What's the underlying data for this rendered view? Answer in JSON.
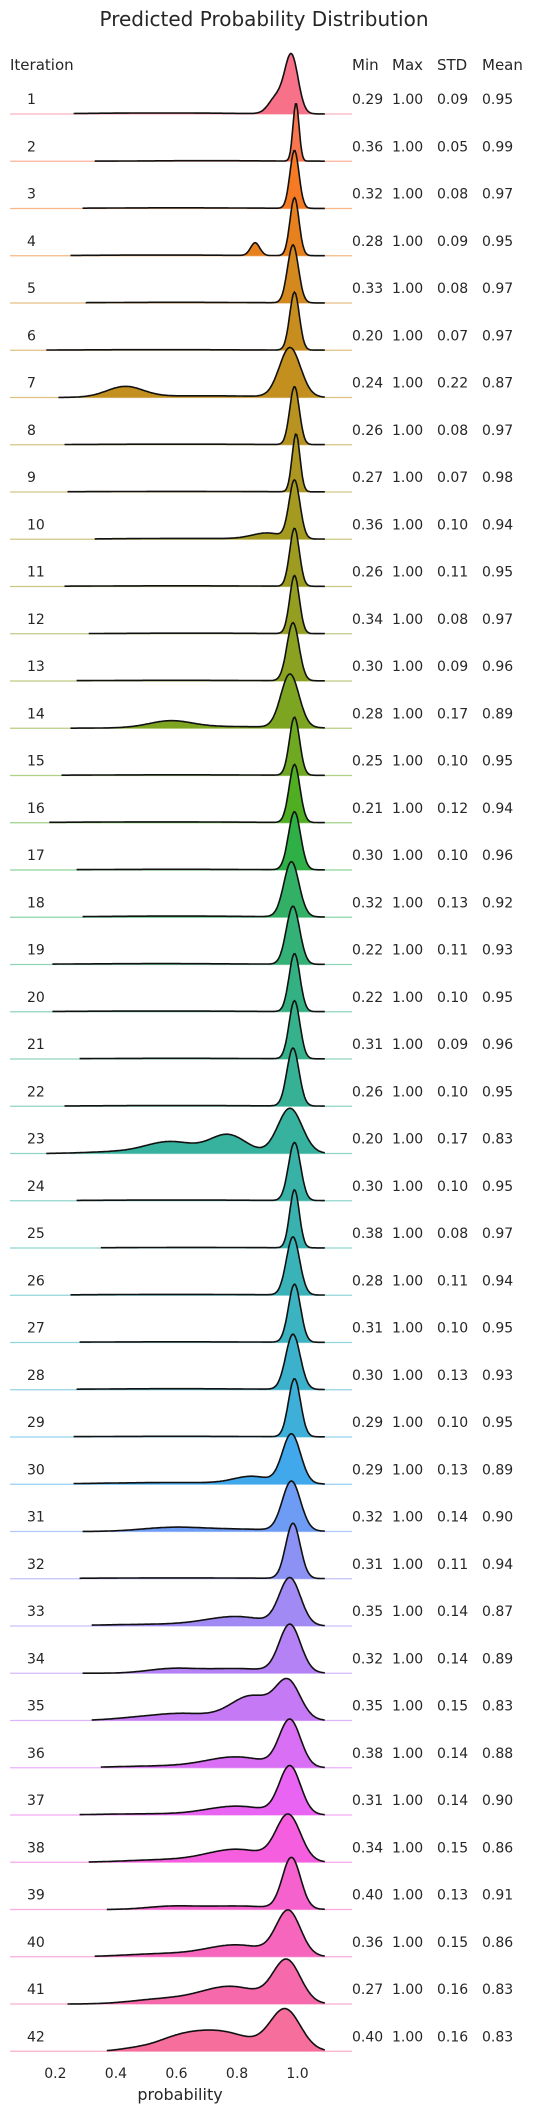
{
  "chart_data": {
    "type": "ridgeline",
    "title": "Predicted Probability Distribution",
    "xlabel": "probability",
    "xlim": [
      0.05,
      1.18
    ],
    "xticks": [
      0.2,
      0.4,
      0.6,
      0.8,
      1.0
    ],
    "xtick_labels": [
      "0.2",
      "0.4",
      "0.6",
      "0.8",
      "1.0"
    ],
    "row_header": "Iteration",
    "stat_headers": [
      "Min",
      "Max",
      "STD",
      "Mean"
    ],
    "rows": [
      {
        "label": "1",
        "stats": [
          "0.29",
          "1.00",
          "0.09",
          "0.95"
        ],
        "color": "#f77189",
        "peaks": [
          [
            0.98,
            0.022,
            1.0
          ],
          [
            0.93,
            0.025,
            0.28
          ],
          [
            0.55,
            0.25,
            0.018
          ]
        ]
      },
      {
        "label": "2",
        "stats": [
          "0.36",
          "1.00",
          "0.05",
          "0.99"
        ],
        "color": "#f7754f",
        "peaks": [
          [
            0.995,
            0.01,
            1.0
          ],
          [
            0.7,
            0.2,
            0.01
          ]
        ]
      },
      {
        "label": "3",
        "stats": [
          "0.32",
          "1.00",
          "0.08",
          "0.97"
        ],
        "color": "#f57a23",
        "peaks": [
          [
            0.99,
            0.015,
            1.0
          ],
          [
            0.6,
            0.25,
            0.012
          ]
        ]
      },
      {
        "label": "4",
        "stats": [
          "0.28",
          "1.00",
          "0.09",
          "0.95"
        ],
        "color": "#e7811e",
        "peaks": [
          [
            0.99,
            0.015,
            1.0
          ],
          [
            0.86,
            0.015,
            0.22
          ],
          [
            0.55,
            0.25,
            0.012
          ]
        ]
      },
      {
        "label": "5",
        "stats": [
          "0.33",
          "1.00",
          "0.08",
          "0.97"
        ],
        "color": "#d4891e",
        "peaks": [
          [
            0.985,
            0.018,
            1.0
          ],
          [
            0.6,
            0.25,
            0.012
          ]
        ]
      },
      {
        "label": "6",
        "stats": [
          "0.20",
          "1.00",
          "0.07",
          "0.97"
        ],
        "color": "#c78d1e",
        "peaks": [
          [
            0.99,
            0.016,
            1.0
          ],
          [
            0.55,
            0.3,
            0.01
          ]
        ]
      },
      {
        "label": "7",
        "stats": [
          "0.24",
          "1.00",
          "0.22",
          "0.87"
        ],
        "color": "#c38f1f",
        "peaks": [
          [
            0.975,
            0.035,
            0.85
          ],
          [
            0.43,
            0.06,
            0.18
          ],
          [
            0.7,
            0.2,
            0.03
          ]
        ]
      },
      {
        "label": "8",
        "stats": [
          "0.26",
          "1.00",
          "0.08",
          "0.97"
        ],
        "color": "#b8931f",
        "peaks": [
          [
            0.99,
            0.016,
            1.0
          ],
          [
            0.6,
            0.3,
            0.01
          ]
        ]
      },
      {
        "label": "9",
        "stats": [
          "0.27",
          "1.00",
          "0.07",
          "0.98"
        ],
        "color": "#ae9720",
        "peaks": [
          [
            0.995,
            0.013,
            1.0
          ],
          [
            0.6,
            0.3,
            0.01
          ]
        ]
      },
      {
        "label": "10",
        "stats": [
          "0.36",
          "1.00",
          "0.10",
          "0.94"
        ],
        "color": "#a59a20",
        "peaks": [
          [
            0.99,
            0.018,
            1.0
          ],
          [
            0.9,
            0.05,
            0.1
          ],
          [
            0.65,
            0.25,
            0.015
          ]
        ]
      },
      {
        "label": "11",
        "stats": [
          "0.26",
          "1.00",
          "0.11",
          "0.95"
        ],
        "color": "#9d9c21",
        "peaks": [
          [
            0.99,
            0.016,
            1.0
          ],
          [
            0.6,
            0.3,
            0.012
          ]
        ]
      },
      {
        "label": "12",
        "stats": [
          "0.34",
          "1.00",
          "0.08",
          "0.97"
        ],
        "color": "#949e21",
        "peaks": [
          [
            0.99,
            0.016,
            1.0
          ],
          [
            0.65,
            0.25,
            0.01
          ]
        ]
      },
      {
        "label": "13",
        "stats": [
          "0.30",
          "1.00",
          "0.09",
          "0.96"
        ],
        "color": "#8ba121",
        "peaks": [
          [
            0.985,
            0.02,
            1.0
          ],
          [
            0.6,
            0.3,
            0.012
          ]
        ]
      },
      {
        "label": "14",
        "stats": [
          "0.28",
          "1.00",
          "0.17",
          "0.89"
        ],
        "color": "#7ea521",
        "peaks": [
          [
            0.975,
            0.03,
            0.92
          ],
          [
            0.58,
            0.07,
            0.11
          ],
          [
            0.75,
            0.2,
            0.03
          ]
        ]
      },
      {
        "label": "15",
        "stats": [
          "0.25",
          "1.00",
          "0.10",
          "0.95"
        ],
        "color": "#6ea921",
        "peaks": [
          [
            0.99,
            0.017,
            1.0
          ],
          [
            0.6,
            0.3,
            0.012
          ]
        ]
      },
      {
        "label": "16",
        "stats": [
          "0.21",
          "1.00",
          "0.12",
          "0.94"
        ],
        "color": "#4fae21",
        "peaks": [
          [
            0.99,
            0.018,
            1.0
          ],
          [
            0.55,
            0.3,
            0.015
          ]
        ]
      },
      {
        "label": "17",
        "stats": [
          "0.30",
          "1.00",
          "0.10",
          "0.96"
        ],
        "color": "#2fb046",
        "peaks": [
          [
            0.99,
            0.02,
            1.0
          ],
          [
            0.6,
            0.3,
            0.012
          ]
        ]
      },
      {
        "label": "18",
        "stats": [
          "0.32",
          "1.00",
          "0.13",
          "0.92"
        ],
        "color": "#32b166",
        "peaks": [
          [
            0.98,
            0.025,
            0.95
          ],
          [
            0.6,
            0.3,
            0.02
          ]
        ]
      },
      {
        "label": "19",
        "stats": [
          "0.22",
          "1.00",
          "0.11",
          "0.93"
        ],
        "color": "#33b176",
        "peaks": [
          [
            0.985,
            0.022,
            1.0
          ],
          [
            0.55,
            0.3,
            0.015
          ]
        ]
      },
      {
        "label": "20",
        "stats": [
          "0.22",
          "1.00",
          "0.10",
          "0.95"
        ],
        "color": "#34b182",
        "peaks": [
          [
            0.99,
            0.018,
            1.0
          ],
          [
            0.55,
            0.3,
            0.012
          ]
        ]
      },
      {
        "label": "21",
        "stats": [
          "0.31",
          "1.00",
          "0.09",
          "0.96"
        ],
        "color": "#35b18c",
        "peaks": [
          [
            0.99,
            0.018,
            1.0
          ],
          [
            0.6,
            0.3,
            0.012
          ]
        ]
      },
      {
        "label": "22",
        "stats": [
          "0.26",
          "1.00",
          "0.10",
          "0.95"
        ],
        "color": "#36b196",
        "peaks": [
          [
            0.985,
            0.02,
            1.0
          ],
          [
            0.6,
            0.3,
            0.012
          ]
        ]
      },
      {
        "label": "23",
        "stats": [
          "0.20",
          "1.00",
          "0.17",
          "0.83"
        ],
        "color": "#37b29e",
        "peaks": [
          [
            0.975,
            0.04,
            0.78
          ],
          [
            0.77,
            0.06,
            0.32
          ],
          [
            0.58,
            0.08,
            0.2
          ],
          [
            0.4,
            0.1,
            0.03
          ]
        ]
      },
      {
        "label": "24",
        "stats": [
          "0.30",
          "1.00",
          "0.10",
          "0.95"
        ],
        "color": "#38b2a7",
        "peaks": [
          [
            0.99,
            0.02,
            1.0
          ],
          [
            0.6,
            0.3,
            0.012
          ]
        ]
      },
      {
        "label": "25",
        "stats": [
          "0.38",
          "1.00",
          "0.08",
          "0.97"
        ],
        "color": "#39b2af",
        "peaks": [
          [
            0.99,
            0.016,
            1.0
          ],
          [
            0.65,
            0.25,
            0.01
          ]
        ]
      },
      {
        "label": "26",
        "stats": [
          "0.28",
          "1.00",
          "0.11",
          "0.94"
        ],
        "color": "#3ab3b8",
        "peaks": [
          [
            0.985,
            0.022,
            1.0
          ],
          [
            0.6,
            0.3,
            0.015
          ]
        ]
      },
      {
        "label": "27",
        "stats": [
          "0.31",
          "1.00",
          "0.10",
          "0.95"
        ],
        "color": "#3bb3c1",
        "peaks": [
          [
            0.99,
            0.02,
            1.0
          ],
          [
            0.6,
            0.3,
            0.012
          ]
        ]
      },
      {
        "label": "28",
        "stats": [
          "0.30",
          "1.00",
          "0.13",
          "0.93"
        ],
        "color": "#3cb1cc",
        "peaks": [
          [
            0.985,
            0.024,
            0.95
          ],
          [
            0.6,
            0.3,
            0.018
          ]
        ]
      },
      {
        "label": "29",
        "stats": [
          "0.29",
          "1.00",
          "0.10",
          "0.95"
        ],
        "color": "#3eafd9",
        "peaks": [
          [
            0.99,
            0.02,
            1.0
          ],
          [
            0.6,
            0.3,
            0.012
          ]
        ]
      },
      {
        "label": "30",
        "stats": [
          "0.29",
          "1.00",
          "0.13",
          "0.89"
        ],
        "color": "#41a8ec",
        "peaks": [
          [
            0.98,
            0.03,
            0.85
          ],
          [
            0.85,
            0.06,
            0.12
          ],
          [
            0.6,
            0.25,
            0.03
          ]
        ]
      },
      {
        "label": "31",
        "stats": [
          "0.32",
          "1.00",
          "0.14",
          "0.90"
        ],
        "color": "#6e9bf4",
        "peaks": [
          [
            0.98,
            0.03,
            0.85
          ],
          [
            0.58,
            0.1,
            0.06
          ],
          [
            0.8,
            0.15,
            0.04
          ]
        ]
      },
      {
        "label": "32",
        "stats": [
          "0.31",
          "1.00",
          "0.11",
          "0.94"
        ],
        "color": "#8c92f4",
        "peaks": [
          [
            0.985,
            0.024,
            0.95
          ],
          [
            0.6,
            0.3,
            0.015
          ]
        ]
      },
      {
        "label": "33",
        "stats": [
          "0.35",
          "1.00",
          "0.14",
          "0.87"
        ],
        "color": "#a28af4",
        "peaks": [
          [
            0.975,
            0.035,
            0.8
          ],
          [
            0.8,
            0.1,
            0.15
          ],
          [
            0.55,
            0.2,
            0.03
          ]
        ]
      },
      {
        "label": "34",
        "stats": [
          "0.32",
          "1.00",
          "0.14",
          "0.89"
        ],
        "color": "#b482f4",
        "peaks": [
          [
            0.975,
            0.035,
            0.82
          ],
          [
            0.58,
            0.08,
            0.07
          ],
          [
            0.8,
            0.12,
            0.08
          ]
        ]
      },
      {
        "label": "35",
        "stats": [
          "0.35",
          "1.00",
          "0.15",
          "0.83"
        ],
        "color": "#c579f4",
        "peaks": [
          [
            0.97,
            0.04,
            0.62
          ],
          [
            0.85,
            0.07,
            0.42
          ],
          [
            0.62,
            0.1,
            0.12
          ],
          [
            0.45,
            0.08,
            0.03
          ]
        ]
      },
      {
        "label": "36",
        "stats": [
          "0.38",
          "1.00",
          "0.14",
          "0.88"
        ],
        "color": "#d96ff4",
        "peaks": [
          [
            0.975,
            0.035,
            0.8
          ],
          [
            0.8,
            0.1,
            0.18
          ],
          [
            0.55,
            0.15,
            0.03
          ]
        ]
      },
      {
        "label": "37",
        "stats": [
          "0.31",
          "1.00",
          "0.14",
          "0.90"
        ],
        "color": "#ea64f3",
        "peaks": [
          [
            0.975,
            0.035,
            0.82
          ],
          [
            0.8,
            0.1,
            0.15
          ],
          [
            0.5,
            0.15,
            0.02
          ]
        ]
      },
      {
        "label": "38",
        "stats": [
          "0.34",
          "1.00",
          "0.15",
          "0.86"
        ],
        "color": "#f55fdf",
        "peaks": [
          [
            0.97,
            0.04,
            0.78
          ],
          [
            0.8,
            0.1,
            0.22
          ],
          [
            0.55,
            0.12,
            0.04
          ]
        ]
      },
      {
        "label": "39",
        "stats": [
          "0.40",
          "1.00",
          "0.13",
          "0.91"
        ],
        "color": "#f562cd",
        "peaks": [
          [
            0.98,
            0.03,
            0.88
          ],
          [
            0.58,
            0.08,
            0.05
          ],
          [
            0.8,
            0.12,
            0.06
          ]
        ]
      },
      {
        "label": "40",
        "stats": [
          "0.36",
          "1.00",
          "0.15",
          "0.86"
        ],
        "color": "#f666bc",
        "peaks": [
          [
            0.97,
            0.04,
            0.76
          ],
          [
            0.8,
            0.1,
            0.2
          ],
          [
            0.55,
            0.12,
            0.05
          ]
        ]
      },
      {
        "label": "41",
        "stats": [
          "0.27",
          "1.00",
          "0.16",
          "0.83"
        ],
        "color": "#f669ab",
        "peaks": [
          [
            0.965,
            0.045,
            0.72
          ],
          [
            0.78,
            0.1,
            0.3
          ],
          [
            0.55,
            0.1,
            0.08
          ]
        ]
      },
      {
        "label": "42",
        "stats": [
          "0.40",
          "1.00",
          "0.16",
          "0.83"
        ],
        "color": "#f66e9c",
        "peaks": [
          [
            0.96,
            0.05,
            0.7
          ],
          [
            0.75,
            0.1,
            0.32
          ],
          [
            0.6,
            0.08,
            0.18
          ],
          [
            0.45,
            0.05,
            0.03
          ]
        ]
      }
    ]
  }
}
